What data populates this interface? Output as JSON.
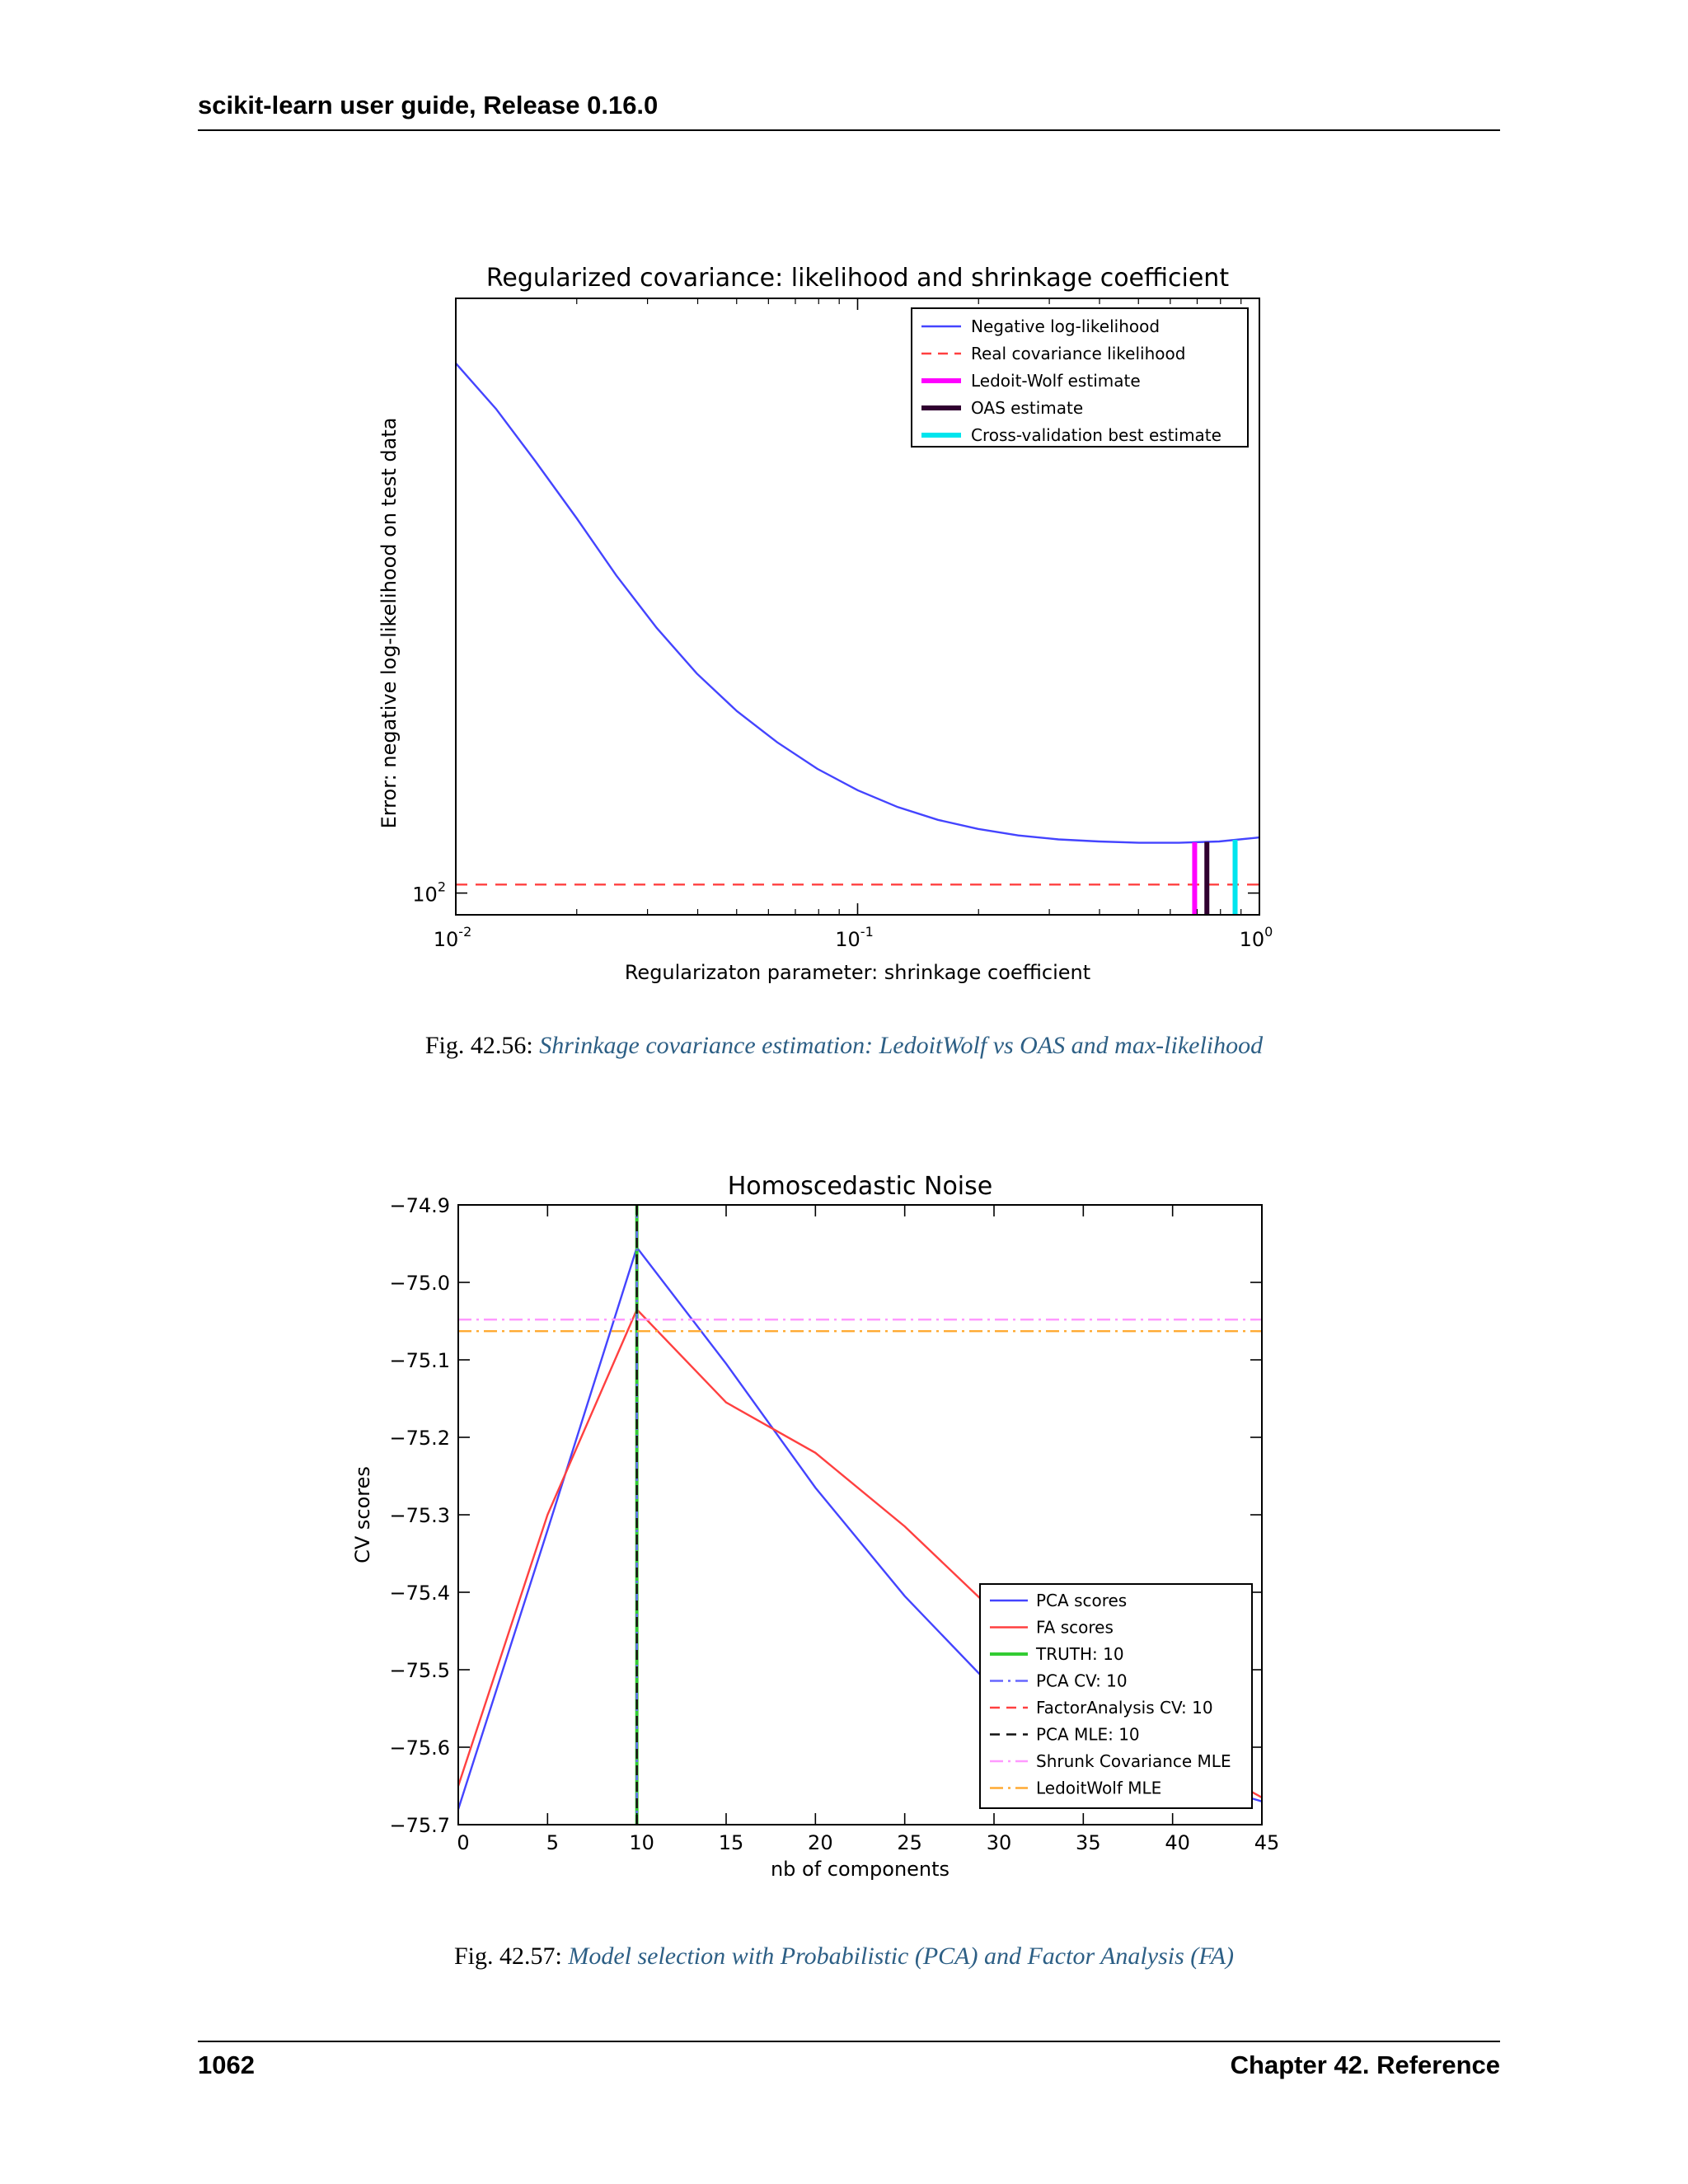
{
  "header": {
    "title": "scikit-learn user guide, Release 0.16.0"
  },
  "footer": {
    "page_number": "1062",
    "chapter": "Chapter 42.  Reference"
  },
  "figures": [
    {
      "number": "Fig.  42.56:",
      "caption": "Shrinkage covariance estimation: LedoitWolf vs OAS and max-likelihood"
    },
    {
      "number": "Fig.  42.57:",
      "caption": "Model selection with Probabilistic (PCA) and Factor Analysis (FA)"
    }
  ],
  "chart_data": [
    {
      "type": "line",
      "title": "Regularized covariance: likelihood and shrinkage coefficient",
      "xlabel": "Regularizaton parameter: shrinkage coefficient",
      "ylabel": "Error: negative log-likelihood on test data",
      "xscale": "log",
      "yscale": "log",
      "xlim": [
        0.01,
        1.0
      ],
      "ylim": [
        97,
        230
      ],
      "xticks": [
        {
          "value": 0.01,
          "base": "10",
          "exp": "-2"
        },
        {
          "value": 0.1,
          "base": "10",
          "exp": "-1"
        },
        {
          "value": 1.0,
          "base": "10",
          "exp": "0"
        }
      ],
      "yticks": [
        {
          "value": 100,
          "base": "10",
          "exp": "2"
        }
      ],
      "legend_position": "top-right",
      "series": [
        {
          "name": "Negative log-likelihood",
          "color": "#4444ff",
          "style": "solid",
          "x": [
            0.01,
            0.0126,
            0.0158,
            0.02,
            0.0251,
            0.0316,
            0.0398,
            0.0501,
            0.0631,
            0.0794,
            0.1,
            0.1259,
            0.1585,
            0.1995,
            0.2512,
            0.3162,
            0.3981,
            0.5012,
            0.631,
            0.7943,
            1.0
          ],
          "y": [
            210,
            197,
            183,
            169,
            156,
            145,
            136,
            129,
            123.5,
            119,
            115.5,
            112.8,
            110.8,
            109.4,
            108.4,
            107.8,
            107.5,
            107.3,
            107.3,
            107.5,
            108.1
          ]
        },
        {
          "name": "Real covariance likelihood",
          "color": "#ff4040",
          "style": "dashed",
          "y_const": 101.2
        },
        {
          "name": "Ledoit-Wolf estimate",
          "color": "#ff00ff",
          "style": "vline",
          "x_const": 0.69
        },
        {
          "name": "OAS estimate",
          "color": "#300030",
          "style": "vline",
          "x_const": 0.74
        },
        {
          "name": "Cross-validation best estimate",
          "color": "#00e5ee",
          "style": "vline",
          "x_const": 0.87
        }
      ]
    },
    {
      "type": "line",
      "title": "Homoscedastic Noise",
      "xlabel": "nb of components",
      "ylabel": "CV scores",
      "xlim": [
        0,
        45
      ],
      "ylim": [
        -75.7,
        -74.9
      ],
      "xticks": [
        "0",
        "5",
        "10",
        "15",
        "20",
        "25",
        "30",
        "35",
        "40",
        "45"
      ],
      "yticks": [
        "−74.9",
        "−75.0",
        "−75.1",
        "−75.2",
        "−75.3",
        "−75.4",
        "−75.5",
        "−75.6",
        "−75.7"
      ],
      "legend_position": "lower-right",
      "series": [
        {
          "name": "PCA scores",
          "color": "#4444ff",
          "style": "solid",
          "x": [
            0,
            5,
            10,
            15,
            20,
            25,
            30,
            35,
            40,
            45
          ],
          "y": [
            -75.68,
            -75.32,
            -74.955,
            -75.105,
            -75.265,
            -75.405,
            -75.525,
            -75.595,
            -75.635,
            -75.67
          ]
        },
        {
          "name": "FA scores",
          "color": "#ff4040",
          "style": "solid",
          "x": [
            0,
            5,
            10,
            15,
            20,
            25,
            30,
            35,
            40,
            45
          ],
          "y": [
            -75.65,
            -75.3,
            -75.035,
            -75.155,
            -75.22,
            -75.315,
            -75.425,
            -75.52,
            -75.6,
            -75.665
          ]
        },
        {
          "name": "TRUTH: 10",
          "color": "#33cc33",
          "style": "vline",
          "x_const": 10
        },
        {
          "name": "PCA CV: 10",
          "color": "#6666ff",
          "style": "vline-dashdot",
          "x_const": 10
        },
        {
          "name": "FactorAnalysis CV: 10",
          "color": "#ff4040",
          "style": "vline-dashed",
          "x_const": 10
        },
        {
          "name": "PCA MLE: 10",
          "color": "#111111",
          "style": "vline-dashed",
          "x_const": 10
        },
        {
          "name": "Shrunk Covariance MLE",
          "color": "#ff99ff",
          "style": "hline-dashdot",
          "y_const": -75.048
        },
        {
          "name": "LedoitWolf MLE",
          "color": "#ffaa33",
          "style": "hline-dashdot",
          "y_const": -75.063
        }
      ]
    }
  ]
}
